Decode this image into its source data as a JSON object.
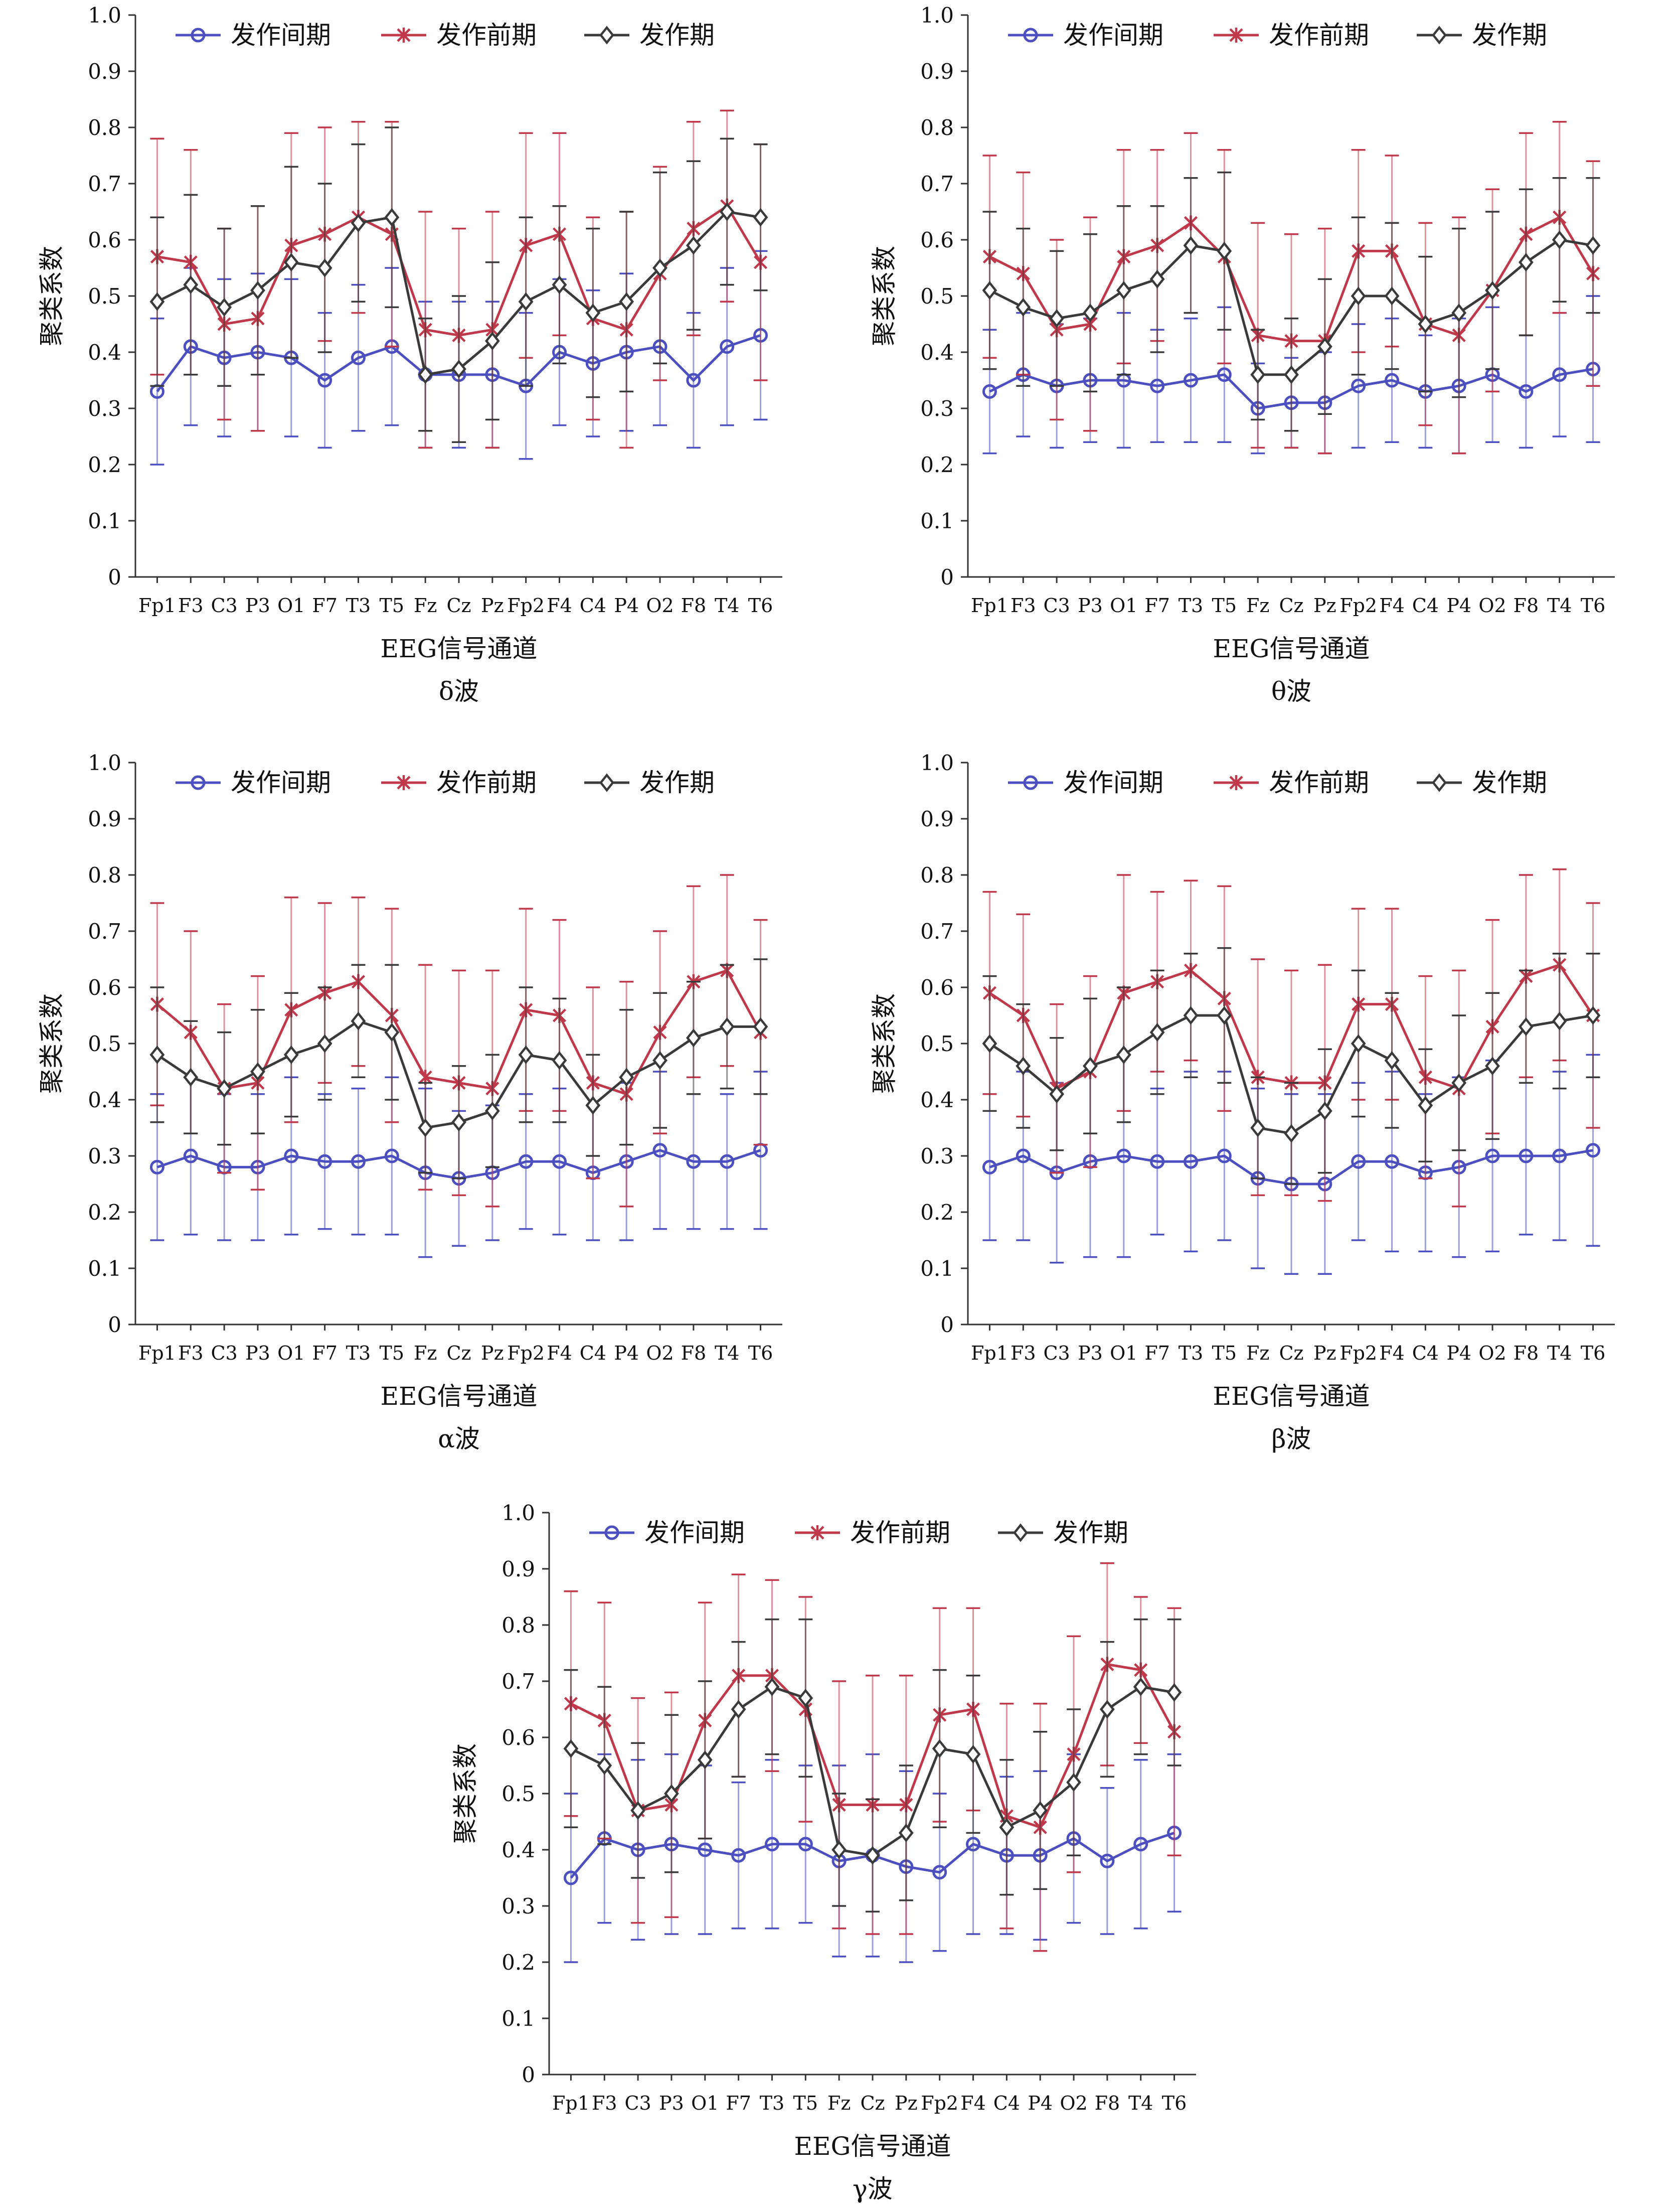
{
  "chart_data": [
    {
      "type": "line",
      "caption": "δ波",
      "xlabel": "EEG信号通道",
      "ylabel": "聚类系数",
      "ylim": [
        0,
        1.0
      ],
      "yticks": [
        "0",
        "0.1",
        "0.2",
        "0.3",
        "0.4",
        "0.5",
        "0.6",
        "0.7",
        "0.8",
        "0.9",
        "1.0"
      ],
      "categories": [
        "Fp1",
        "F3",
        "C3",
        "P3",
        "O1",
        "F7",
        "T3",
        "T5",
        "Fz",
        "Cz",
        "Pz",
        "Fp2",
        "F4",
        "C4",
        "P4",
        "O2",
        "F8",
        "T4",
        "T6"
      ],
      "legend_position": "top",
      "series": [
        {
          "name": "发作间期",
          "color": "#4b4fc0",
          "marker": "circle",
          "values": [
            0.33,
            0.41,
            0.39,
            0.4,
            0.39,
            0.35,
            0.39,
            0.41,
            0.36,
            0.36,
            0.36,
            0.34,
            0.4,
            0.38,
            0.4,
            0.41,
            0.35,
            0.41,
            0.43
          ],
          "err": [
            0.13,
            0.14,
            0.14,
            0.14,
            0.14,
            0.12,
            0.13,
            0.14,
            0.13,
            0.13,
            0.13,
            0.13,
            0.13,
            0.13,
            0.14,
            0.14,
            0.12,
            0.14,
            0.15
          ]
        },
        {
          "name": "发作前期",
          "color": "#c0394b",
          "marker": "star",
          "values": [
            0.57,
            0.56,
            0.45,
            0.46,
            0.59,
            0.61,
            0.64,
            0.61,
            0.44,
            0.43,
            0.44,
            0.59,
            0.61,
            0.46,
            0.44,
            0.54,
            0.62,
            0.66,
            0.56
          ],
          "err": [
            0.21,
            0.2,
            0.17,
            0.2,
            0.2,
            0.19,
            0.17,
            0.2,
            0.21,
            0.19,
            0.21,
            0.2,
            0.18,
            0.18,
            0.21,
            0.19,
            0.19,
            0.17,
            0.21
          ]
        },
        {
          "name": "发作期",
          "color": "#3a3a3a",
          "marker": "diamond",
          "values": [
            0.49,
            0.52,
            0.48,
            0.51,
            0.56,
            0.55,
            0.63,
            0.64,
            0.36,
            0.37,
            0.42,
            0.49,
            0.52,
            0.47,
            0.49,
            0.55,
            0.59,
            0.65,
            0.64
          ],
          "err": [
            0.15,
            0.16,
            0.14,
            0.15,
            0.17,
            0.15,
            0.14,
            0.16,
            0.1,
            0.13,
            0.14,
            0.15,
            0.14,
            0.15,
            0.16,
            0.17,
            0.15,
            0.13,
            0.13
          ]
        }
      ]
    },
    {
      "type": "line",
      "caption": "θ波",
      "xlabel": "EEG信号通道",
      "ylabel": "聚类系数",
      "ylim": [
        0,
        1.0
      ],
      "yticks": [
        "0",
        "0.1",
        "0.2",
        "0.3",
        "0.4",
        "0.5",
        "0.6",
        "0.7",
        "0.8",
        "0.9",
        "1.0"
      ],
      "categories": [
        "Fp1",
        "F3",
        "C3",
        "P3",
        "O1",
        "F7",
        "T3",
        "T5",
        "Fz",
        "Cz",
        "Pz",
        "Fp2",
        "F4",
        "C4",
        "P4",
        "O2",
        "F8",
        "T4",
        "T6"
      ],
      "legend_position": "top",
      "series": [
        {
          "name": "发作间期",
          "color": "#4b4fc0",
          "marker": "circle",
          "values": [
            0.33,
            0.36,
            0.34,
            0.35,
            0.35,
            0.34,
            0.35,
            0.36,
            0.3,
            0.31,
            0.31,
            0.34,
            0.35,
            0.33,
            0.34,
            0.36,
            0.33,
            0.36,
            0.37
          ],
          "err": [
            0.11,
            0.11,
            0.11,
            0.11,
            0.12,
            0.1,
            0.11,
            0.12,
            0.08,
            0.08,
            0.09,
            0.11,
            0.11,
            0.1,
            0.12,
            0.12,
            0.1,
            0.11,
            0.13
          ]
        },
        {
          "name": "发作前期",
          "color": "#c0394b",
          "marker": "star",
          "values": [
            0.57,
            0.54,
            0.44,
            0.45,
            0.57,
            0.59,
            0.63,
            0.57,
            0.43,
            0.42,
            0.42,
            0.58,
            0.58,
            0.45,
            0.43,
            0.51,
            0.61,
            0.64,
            0.54
          ],
          "err": [
            0.18,
            0.18,
            0.16,
            0.19,
            0.19,
            0.17,
            0.16,
            0.19,
            0.2,
            0.19,
            0.2,
            0.18,
            0.17,
            0.18,
            0.21,
            0.18,
            0.18,
            0.17,
            0.2
          ]
        },
        {
          "name": "发作期",
          "color": "#3a3a3a",
          "marker": "diamond",
          "values": [
            0.51,
            0.48,
            0.46,
            0.47,
            0.51,
            0.53,
            0.59,
            0.58,
            0.36,
            0.36,
            0.41,
            0.5,
            0.5,
            0.45,
            0.47,
            0.51,
            0.56,
            0.6,
            0.59
          ],
          "err": [
            0.14,
            0.14,
            0.12,
            0.14,
            0.15,
            0.13,
            0.12,
            0.14,
            0.08,
            0.1,
            0.12,
            0.14,
            0.13,
            0.12,
            0.15,
            0.14,
            0.13,
            0.11,
            0.12
          ]
        }
      ]
    },
    {
      "type": "line",
      "caption": "α波",
      "xlabel": "EEG信号通道",
      "ylabel": "聚类系数",
      "ylim": [
        0,
        1.0
      ],
      "yticks": [
        "0",
        "0.1",
        "0.2",
        "0.3",
        "0.4",
        "0.5",
        "0.6",
        "0.7",
        "0.8",
        "0.9",
        "1.0"
      ],
      "categories": [
        "Fp1",
        "F3",
        "C3",
        "P3",
        "O1",
        "F7",
        "T3",
        "T5",
        "Fz",
        "Cz",
        "Pz",
        "Fp2",
        "F4",
        "C4",
        "P4",
        "O2",
        "F8",
        "T4",
        "T6"
      ],
      "legend_position": "top",
      "series": [
        {
          "name": "发作间期",
          "color": "#4b4fc0",
          "marker": "circle",
          "values": [
            0.28,
            0.3,
            0.28,
            0.28,
            0.3,
            0.29,
            0.29,
            0.3,
            0.27,
            0.26,
            0.27,
            0.29,
            0.29,
            0.27,
            0.29,
            0.31,
            0.29,
            0.29,
            0.31
          ],
          "err": [
            0.13,
            0.14,
            0.13,
            0.13,
            0.14,
            0.12,
            0.13,
            0.14,
            0.15,
            0.12,
            0.12,
            0.12,
            0.13,
            0.12,
            0.14,
            0.14,
            0.12,
            0.12,
            0.14
          ]
        },
        {
          "name": "发作前期",
          "color": "#c0394b",
          "marker": "star",
          "values": [
            0.57,
            0.52,
            0.42,
            0.43,
            0.56,
            0.59,
            0.61,
            0.55,
            0.44,
            0.43,
            0.42,
            0.56,
            0.55,
            0.43,
            0.41,
            0.52,
            0.61,
            0.63,
            0.52
          ],
          "err": [
            0.18,
            0.18,
            0.15,
            0.19,
            0.2,
            0.16,
            0.15,
            0.19,
            0.2,
            0.2,
            0.21,
            0.18,
            0.17,
            0.17,
            0.2,
            0.18,
            0.17,
            0.17,
            0.2
          ]
        },
        {
          "name": "发作期",
          "color": "#3a3a3a",
          "marker": "diamond",
          "values": [
            0.48,
            0.44,
            0.42,
            0.45,
            0.48,
            0.5,
            0.54,
            0.52,
            0.35,
            0.36,
            0.38,
            0.48,
            0.47,
            0.39,
            0.44,
            0.47,
            0.51,
            0.53,
            0.53
          ],
          "err": [
            0.12,
            0.1,
            0.1,
            0.11,
            0.11,
            0.1,
            0.1,
            0.12,
            0.08,
            0.1,
            0.1,
            0.12,
            0.11,
            0.09,
            0.12,
            0.12,
            0.1,
            0.11,
            0.12
          ]
        }
      ]
    },
    {
      "type": "line",
      "caption": "β波",
      "xlabel": "EEG信号通道",
      "ylabel": "聚类系数",
      "ylim": [
        0,
        1.0
      ],
      "yticks": [
        "0",
        "0.1",
        "0.2",
        "0.3",
        "0.4",
        "0.5",
        "0.6",
        "0.7",
        "0.8",
        "0.9",
        "1.0"
      ],
      "categories": [
        "Fp1",
        "F3",
        "C3",
        "P3",
        "O1",
        "F7",
        "T3",
        "T5",
        "Fz",
        "Cz",
        "Pz",
        "Fp2",
        "F4",
        "C4",
        "P4",
        "O2",
        "F8",
        "T4",
        "T6"
      ],
      "legend_position": "top",
      "series": [
        {
          "name": "发作间期",
          "color": "#4b4fc0",
          "marker": "circle",
          "values": [
            0.28,
            0.3,
            0.27,
            0.29,
            0.3,
            0.29,
            0.29,
            0.3,
            0.26,
            0.25,
            0.25,
            0.29,
            0.29,
            0.27,
            0.28,
            0.3,
            0.3,
            0.3,
            0.31
          ],
          "err": [
            0.13,
            0.15,
            0.16,
            0.17,
            0.18,
            0.13,
            0.16,
            0.15,
            0.16,
            0.16,
            0.16,
            0.14,
            0.16,
            0.14,
            0.16,
            0.17,
            0.14,
            0.15,
            0.17
          ]
        },
        {
          "name": "发作前期",
          "color": "#c0394b",
          "marker": "star",
          "values": [
            0.59,
            0.55,
            0.42,
            0.45,
            0.59,
            0.61,
            0.63,
            0.58,
            0.44,
            0.43,
            0.43,
            0.57,
            0.57,
            0.44,
            0.42,
            0.53,
            0.62,
            0.64,
            0.55
          ],
          "err": [
            0.18,
            0.18,
            0.15,
            0.17,
            0.21,
            0.16,
            0.16,
            0.2,
            0.21,
            0.2,
            0.21,
            0.17,
            0.17,
            0.18,
            0.21,
            0.19,
            0.18,
            0.17,
            0.2
          ]
        },
        {
          "name": "发作期",
          "color": "#3a3a3a",
          "marker": "diamond",
          "values": [
            0.5,
            0.46,
            0.41,
            0.46,
            0.48,
            0.52,
            0.55,
            0.55,
            0.35,
            0.34,
            0.38,
            0.5,
            0.47,
            0.39,
            0.43,
            0.46,
            0.53,
            0.54,
            0.55
          ],
          "err": [
            0.12,
            0.11,
            0.1,
            0.12,
            0.12,
            0.11,
            0.11,
            0.12,
            0.09,
            0.09,
            0.11,
            0.13,
            0.12,
            0.1,
            0.12,
            0.13,
            0.1,
            0.12,
            0.11
          ]
        }
      ]
    },
    {
      "type": "line",
      "caption": "γ波",
      "xlabel": "EEG信号通道",
      "ylabel": "聚类系数",
      "ylim": [
        0,
        1.0
      ],
      "yticks": [
        "0",
        "0.1",
        "0.2",
        "0.3",
        "0.4",
        "0.5",
        "0.6",
        "0.7",
        "0.8",
        "0.9",
        "1.0"
      ],
      "categories": [
        "Fp1",
        "F3",
        "C3",
        "P3",
        "O1",
        "F7",
        "T3",
        "T5",
        "Fz",
        "Cz",
        "Pz",
        "Fp2",
        "F4",
        "C4",
        "P4",
        "O2",
        "F8",
        "T4",
        "T6"
      ],
      "legend_position": "top",
      "series": [
        {
          "name": "发作间期",
          "color": "#4b4fc0",
          "marker": "circle",
          "values": [
            0.35,
            0.42,
            0.4,
            0.41,
            0.4,
            0.39,
            0.41,
            0.41,
            0.38,
            0.39,
            0.37,
            0.36,
            0.41,
            0.39,
            0.39,
            0.42,
            0.38,
            0.41,
            0.43
          ],
          "err": [
            0.15,
            0.15,
            0.16,
            0.16,
            0.15,
            0.13,
            0.15,
            0.14,
            0.17,
            0.18,
            0.17,
            0.14,
            0.16,
            0.14,
            0.15,
            0.15,
            0.13,
            0.15,
            0.14
          ]
        },
        {
          "name": "发作前期",
          "color": "#c0394b",
          "marker": "star",
          "values": [
            0.66,
            0.63,
            0.47,
            0.48,
            0.63,
            0.71,
            0.71,
            0.65,
            0.48,
            0.48,
            0.48,
            0.64,
            0.65,
            0.46,
            0.44,
            0.57,
            0.73,
            0.72,
            0.61
          ],
          "err": [
            0.2,
            0.21,
            0.2,
            0.2,
            0.21,
            0.18,
            0.17,
            0.2,
            0.22,
            0.23,
            0.23,
            0.19,
            0.18,
            0.2,
            0.22,
            0.21,
            0.18,
            0.13,
            0.22
          ]
        },
        {
          "name": "发作期",
          "color": "#3a3a3a",
          "marker": "diamond",
          "values": [
            0.58,
            0.55,
            0.47,
            0.5,
            0.56,
            0.65,
            0.69,
            0.67,
            0.4,
            0.39,
            0.43,
            0.58,
            0.57,
            0.44,
            0.47,
            0.52,
            0.65,
            0.69,
            0.68
          ],
          "err": [
            0.14,
            0.14,
            0.12,
            0.14,
            0.14,
            0.12,
            0.12,
            0.14,
            0.1,
            0.1,
            0.12,
            0.14,
            0.14,
            0.12,
            0.14,
            0.13,
            0.12,
            0.12,
            0.13
          ]
        }
      ]
    }
  ]
}
